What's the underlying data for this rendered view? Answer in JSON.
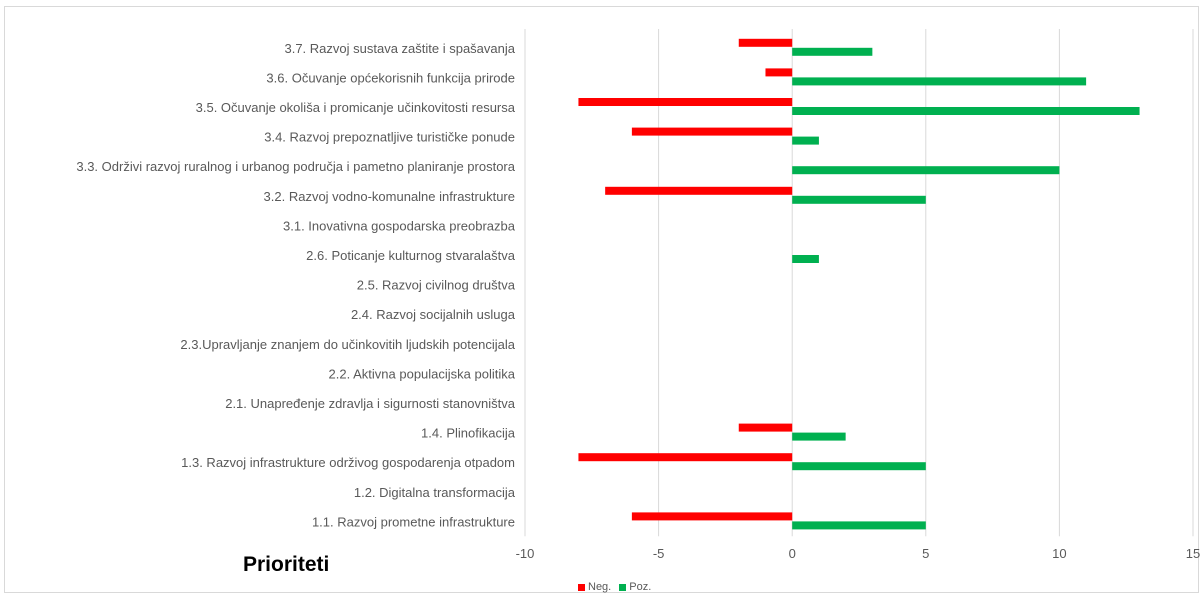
{
  "chart_data": {
    "type": "bar",
    "orientation": "horizontal",
    "title": "Prioriteti",
    "categories": [
      "3.7. Razvoj sustava zaštite i spašavanja",
      "3.6. Očuvanje općekorisnih funkcija prirode",
      "3.5. Očuvanje okoliša i promicanje učinkovitosti resursa",
      "3.4. Razvoj prepoznatljive turističke ponude",
      "3.3. Održivi razvoj ruralnog i urbanog područja i pametno planiranje prostora",
      "3.2. Razvoj vodno-komunalne infrastrukture",
      "3.1. Inovativna gospodarska preobrazba",
      "2.6. Poticanje kulturnog stvaralaštva",
      "2.5. Razvoj civilnog društva",
      "2.4. Razvoj socijalnih usluga",
      "2.3.Upravljanje znanjem do učinkovitih ljudskih potencijala",
      "2.2. Aktivna populacijska politika",
      "2.1. Unapređenje zdravlja i sigurnosti stanovništva",
      "1.4. Plinofikacija",
      "1.3. Razvoj infrastrukture održivog gospodarenja otpadom",
      "1.2. Digitalna transformacija",
      "1.1. Razvoj prometne infrastrukture"
    ],
    "series": [
      {
        "name": "Neg.",
        "color": "#ff0000",
        "values": [
          -2,
          -1,
          -8,
          -6,
          0,
          -7,
          0,
          0,
          0,
          0,
          0,
          0,
          0,
          -2,
          -8,
          0,
          -6
        ]
      },
      {
        "name": "Poz.",
        "color": "#00b050",
        "values": [
          3,
          11,
          13,
          1,
          10,
          5,
          0,
          1,
          0,
          0,
          0,
          0,
          0,
          2,
          5,
          0,
          5
        ]
      }
    ],
    "xlim": [
      -10,
      15
    ],
    "xticks": [
      -10,
      -5,
      0,
      5,
      10,
      15
    ],
    "grid": true,
    "legend": "bottom"
  }
}
